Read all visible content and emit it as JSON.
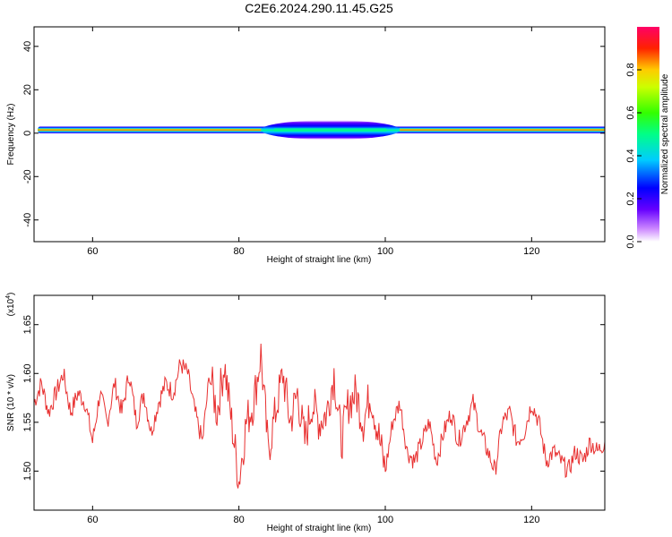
{
  "title": "C2E6.2024.290.11.45.G25",
  "colors": {
    "snr_line": "#e83030",
    "axis": "#000000",
    "background": "#ffffff"
  },
  "chart_data": [
    {
      "type": "heatmap",
      "xlabel": "Height of straight line (km)",
      "ylabel": "Frequency (Hz)",
      "xlim": [
        52,
        130
      ],
      "ylim": [
        -50,
        49
      ],
      "xticks": [
        60,
        80,
        100,
        120
      ],
      "yticks": [
        40,
        20,
        0,
        -20,
        -40
      ],
      "colorbar": {
        "label": "Normalized spectral amplitude",
        "range": [
          0.0,
          1.0
        ],
        "ticks": [
          "0.0",
          "0.2",
          "0.4",
          "0.6",
          "0.8"
        ]
      },
      "band": {
        "center_freq_hz": 1.5,
        "narrow_halfwidth_hz": 1.8,
        "broadened_x_range_km": [
          83,
          102
        ],
        "broadened_halfwidth_hz": 4.5
      }
    },
    {
      "type": "line",
      "xlabel": "Height of straight line (km)",
      "ylabel": "SNR (10 * v/v)",
      "yscale_label": "(x10",
      "yscale_exp": "4",
      "yscale_suffix": ")",
      "xlim": [
        52,
        130
      ],
      "ylim": [
        1.46,
        1.68
      ],
      "xticks": [
        60,
        80,
        100,
        120
      ],
      "yticks": [
        "1.50",
        "1.55",
        "1.60",
        "1.65"
      ],
      "series": [
        {
          "x": [
            52,
            53,
            54,
            55,
            56,
            57,
            58,
            59,
            60,
            61,
            62,
            63,
            64,
            65,
            66,
            67,
            68,
            69,
            70,
            71,
            72,
            73,
            74,
            75,
            76,
            77,
            78,
            79,
            80,
            81,
            82,
            83,
            84,
            85,
            86,
            87,
            88,
            89,
            90,
            91,
            92,
            93,
            94,
            95,
            96,
            97,
            98,
            99,
            100,
            101,
            102,
            103,
            104,
            105,
            106,
            107,
            108,
            109,
            110,
            111,
            112,
            113,
            114,
            115,
            116,
            117,
            118,
            119,
            120,
            121,
            122,
            123,
            124,
            125,
            126,
            127,
            128,
            129,
            130
          ],
          "values": [
            1.57,
            1.59,
            1.56,
            1.58,
            1.6,
            1.56,
            1.58,
            1.57,
            1.53,
            1.58,
            1.55,
            1.59,
            1.56,
            1.6,
            1.55,
            1.58,
            1.54,
            1.57,
            1.59,
            1.58,
            1.61,
            1.6,
            1.56,
            1.53,
            1.6,
            1.56,
            1.61,
            1.55,
            1.49,
            1.55,
            1.57,
            1.62,
            1.52,
            1.56,
            1.6,
            1.55,
            1.58,
            1.53,
            1.57,
            1.55,
            1.56,
            1.6,
            1.53,
            1.57,
            1.58,
            1.55,
            1.58,
            1.54,
            1.5,
            1.55,
            1.57,
            1.52,
            1.51,
            1.53,
            1.55,
            1.51,
            1.54,
            1.56,
            1.53,
            1.55,
            1.57,
            1.54,
            1.52,
            1.5,
            1.55,
            1.56,
            1.53,
            1.54,
            1.57,
            1.55,
            1.51,
            1.52,
            1.51,
            1.5,
            1.52,
            1.51,
            1.53,
            1.52,
            1.53
          ]
        }
      ]
    }
  ]
}
